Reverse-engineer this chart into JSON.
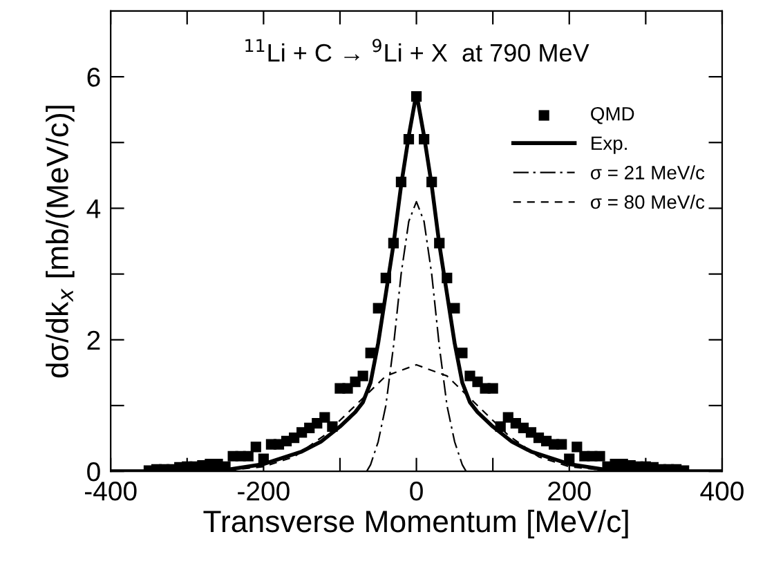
{
  "chart_data": {
    "type": "line",
    "annotations": [
      "$^{11}$Li + C → $^{9}$Li + X  at 790 MeV"
    ],
    "xlabel": "Transverse Momentum [MeV/c]",
    "ylabel": "dσ/dk$_{x}$ [mb/(MeV/c)]",
    "xlim": [
      -400,
      400
    ],
    "ylim": [
      0,
      7
    ],
    "xticks": [
      -400,
      {
        "value": -300,
        "label": null
      },
      -200,
      {
        "value": -100,
        "label": null
      },
      0,
      {
        "value": 100,
        "label": null
      },
      200,
      {
        "value": 300,
        "label": null
      },
      400
    ],
    "yticks": [
      0,
      {
        "value": 1,
        "label": null
      },
      2,
      {
        "value": 3,
        "label": null
      },
      4,
      {
        "value": 5,
        "label": null
      },
      6
    ],
    "grid": false,
    "legend": "top right",
    "series": [
      {
        "name": "QMD",
        "type": "scatter",
        "marker": "square",
        "color": "#000000",
        "x": [
          -350,
          -340,
          -330,
          -320,
          -310,
          -300,
          -290,
          -280,
          -270,
          -260,
          -250,
          -240,
          -230,
          -220,
          -210,
          -200,
          -190,
          -180,
          -170,
          -160,
          -150,
          -140,
          -130,
          -120,
          -110,
          -100,
          -90,
          -80,
          -70,
          -60,
          -50,
          -40,
          -30,
          -20,
          -10,
          0,
          10,
          20,
          30,
          40,
          50,
          60,
          70,
          80,
          90,
          100,
          110,
          120,
          130,
          140,
          150,
          160,
          170,
          180,
          190,
          200,
          210,
          220,
          230,
          240,
          250,
          260,
          270,
          280,
          290,
          300,
          310,
          320,
          330,
          340,
          350
        ],
        "values": [
          0.01,
          0.03,
          0.03,
          0.03,
          0.06,
          0.07,
          0.07,
          0.09,
          0.11,
          0.11,
          0.07,
          0.23,
          0.23,
          0.23,
          0.37,
          0.19,
          0.41,
          0.41,
          0.46,
          0.51,
          0.59,
          0.66,
          0.73,
          0.82,
          0.68,
          1.26,
          1.26,
          1.36,
          1.45,
          1.8,
          2.48,
          2.94,
          3.47,
          4.4,
          5.05,
          5.7,
          5.05,
          4.4,
          3.47,
          2.94,
          2.48,
          1.8,
          1.45,
          1.36,
          1.26,
          1.26,
          0.68,
          0.82,
          0.73,
          0.66,
          0.59,
          0.51,
          0.46,
          0.41,
          0.41,
          0.19,
          0.37,
          0.23,
          0.23,
          0.23,
          0.07,
          0.11,
          0.11,
          0.09,
          0.07,
          0.07,
          0.06,
          0.03,
          0.03,
          0.03,
          0.01
        ]
      },
      {
        "name": "Exp.",
        "line_style": "solid",
        "color": "#000000",
        "x": [
          -400,
          -300,
          -250,
          -200,
          -150,
          -125,
          -100,
          -80,
          -70,
          -60,
          -50,
          -40,
          -30,
          -20,
          -10,
          0,
          10,
          20,
          30,
          40,
          50,
          60,
          70,
          80,
          100,
          125,
          150,
          200,
          250,
          300,
          400
        ],
        "values": [
          0,
          0,
          0.02,
          0.11,
          0.3,
          0.45,
          0.68,
          0.9,
          1.05,
          1.35,
          1.95,
          2.7,
          3.45,
          4.35,
          5.1,
          5.75,
          5.1,
          4.35,
          3.45,
          2.7,
          1.95,
          1.35,
          1.05,
          0.9,
          0.68,
          0.45,
          0.3,
          0.11,
          0.02,
          0,
          0
        ]
      },
      {
        "name": "σ = 21 MeV/c",
        "line_style": "dashdot",
        "color": "#000000",
        "x": [
          -65,
          -60,
          -50,
          -40,
          -30,
          -20,
          -10,
          0,
          10,
          20,
          30,
          40,
          50,
          60,
          65
        ],
        "values": [
          0,
          0.1,
          0.45,
          1.0,
          1.9,
          3.0,
          3.8,
          4.1,
          3.8,
          3.0,
          1.9,
          1.0,
          0.45,
          0.1,
          0
        ]
      },
      {
        "name": "σ = 80 MeV/c",
        "line_style": "dashed",
        "color": "#000000",
        "x": [
          -300,
          -250,
          -200,
          -160,
          -120,
          -80,
          -40,
          0,
          40,
          80,
          120,
          160,
          200,
          250,
          300
        ],
        "values": [
          0,
          0.01,
          0.07,
          0.22,
          0.55,
          1.0,
          1.45,
          1.62,
          1.45,
          1.0,
          0.55,
          0.22,
          0.07,
          0.01,
          0
        ]
      }
    ]
  }
}
